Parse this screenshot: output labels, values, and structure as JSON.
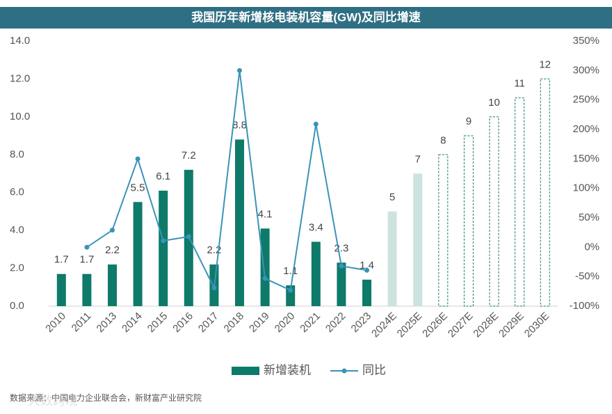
{
  "chart_data": {
    "type": "bar_line",
    "title": "我国历年新增核电装机容量(GW)及同比增速",
    "categories": [
      "2010",
      "2011",
      "2013",
      "2014",
      "2015",
      "2016",
      "2017",
      "2018",
      "2019",
      "2020",
      "2021",
      "2022",
      "2023",
      "2024E",
      "2025E",
      "2026E",
      "2027E",
      "2028E",
      "2029E",
      "2030E"
    ],
    "series": [
      {
        "name": "新增装机",
        "type": "bar",
        "color": "#0e7a6a",
        "colors": [
          "#0e7a6a",
          "#0e7a6a",
          "#0e7a6a",
          "#0e7a6a",
          "#0e7a6a",
          "#0e7a6a",
          "#0e7a6a",
          "#0e7a6a",
          "#0e7a6a",
          "#0e7a6a",
          "#0e7a6a",
          "#0e7a6a",
          "#0e7a6a",
          "#cde3e0",
          "#cde3e0",
          "none",
          "none",
          "none",
          "none",
          "none"
        ],
        "values": [
          1.7,
          1.7,
          2.2,
          5.5,
          6.1,
          7.2,
          2.2,
          8.8,
          4.1,
          1.1,
          3.4,
          2.3,
          1.4,
          5,
          7,
          8,
          9,
          10,
          11,
          12
        ]
      },
      {
        "name": "同比",
        "type": "line",
        "axis": "y2",
        "color": "#3a93b8",
        "values": [
          null,
          0,
          29,
          150,
          11,
          18,
          -69,
          300,
          -53,
          -73,
          209,
          -32,
          -39,
          null,
          null,
          null,
          null,
          null,
          null,
          null
        ]
      }
    ],
    "ylim": [
      0,
      14
    ],
    "yticks": [
      {
        "value": 0,
        "label": "0.0"
      },
      {
        "value": 2,
        "label": "2.0"
      },
      {
        "value": 4,
        "label": "4.0"
      },
      {
        "value": 6,
        "label": "6.0"
      },
      {
        "value": 8,
        "label": "8.0"
      },
      {
        "value": 10,
        "label": "10.0"
      },
      {
        "value": 12,
        "label": "12.0"
      },
      {
        "value": 14,
        "label": "14.0"
      }
    ],
    "y2lim": [
      -100,
      350
    ],
    "y2ticks": [
      {
        "value": -100,
        "label": "-100%"
      },
      {
        "value": -50,
        "label": "-50%"
      },
      {
        "value": 0,
        "label": "0%"
      },
      {
        "value": 50,
        "label": "50%"
      },
      {
        "value": 100,
        "label": "100%"
      },
      {
        "value": 150,
        "label": "150%"
      },
      {
        "value": 200,
        "label": "200%"
      },
      {
        "value": 250,
        "label": "250%"
      },
      {
        "value": 300,
        "label": "300%"
      },
      {
        "value": 350,
        "label": "350%"
      }
    ],
    "legend": "bottom",
    "source": "数据来源：中国电力企业联合会，新财富产业研究院",
    "watermark": "大数跨境"
  }
}
